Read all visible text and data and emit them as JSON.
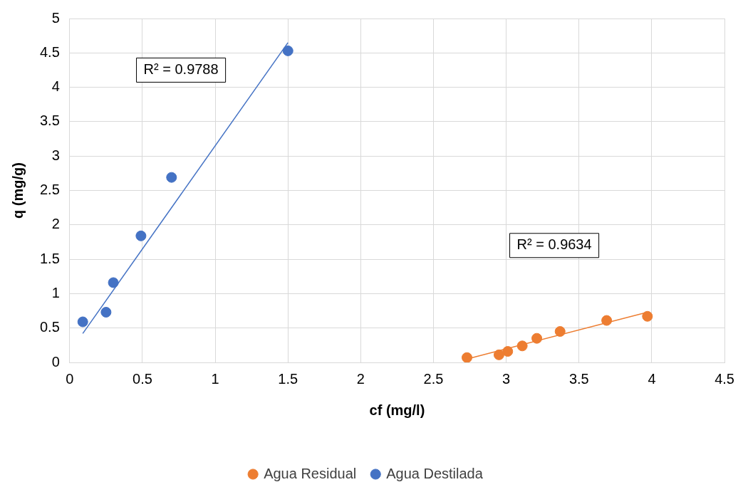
{
  "chart_data": {
    "type": "scatter",
    "xlabel": "cf (mg/l)",
    "ylabel": "q (mg/g)",
    "xlim": [
      0,
      4.5
    ],
    "xticks": [
      0,
      0.5,
      1,
      1.5,
      2,
      2.5,
      3,
      3.5,
      4,
      4.5
    ],
    "ylim": [
      0,
      5
    ],
    "yticks": [
      0,
      0.5,
      1,
      1.5,
      2,
      2.5,
      3,
      3.5,
      4,
      4.5,
      5
    ],
    "grid": true,
    "legend": "bottom",
    "marker": "circle",
    "series": [
      {
        "name": "Agua Residual",
        "color": "#ed7d31",
        "x": [
          2.73,
          2.95,
          3.01,
          3.11,
          3.21,
          3.37,
          3.69,
          3.97
        ],
        "values": [
          0.07,
          0.11,
          0.16,
          0.24,
          0.35,
          0.45,
          0.61,
          0.67
        ]
      },
      {
        "name": "Agua Destilada",
        "color": "#4472c4",
        "x": [
          0.09,
          0.25,
          0.3,
          0.49,
          0.7,
          1.5
        ],
        "values": [
          0.59,
          0.73,
          1.16,
          1.84,
          2.69,
          4.53
        ]
      },
      {
        "type": "line",
        "marker": "none",
        "color": "#ed7d31",
        "x": [
          2.73,
          3.97
        ],
        "values": [
          0.05,
          0.73
        ]
      },
      {
        "type": "line",
        "marker": "none",
        "color": "#4472c4",
        "x": [
          0.09,
          1.5
        ],
        "values": [
          0.42,
          4.65
        ]
      }
    ],
    "annotations": [
      "R² = 0.9788",
      "R² = 0.9634"
    ]
  }
}
